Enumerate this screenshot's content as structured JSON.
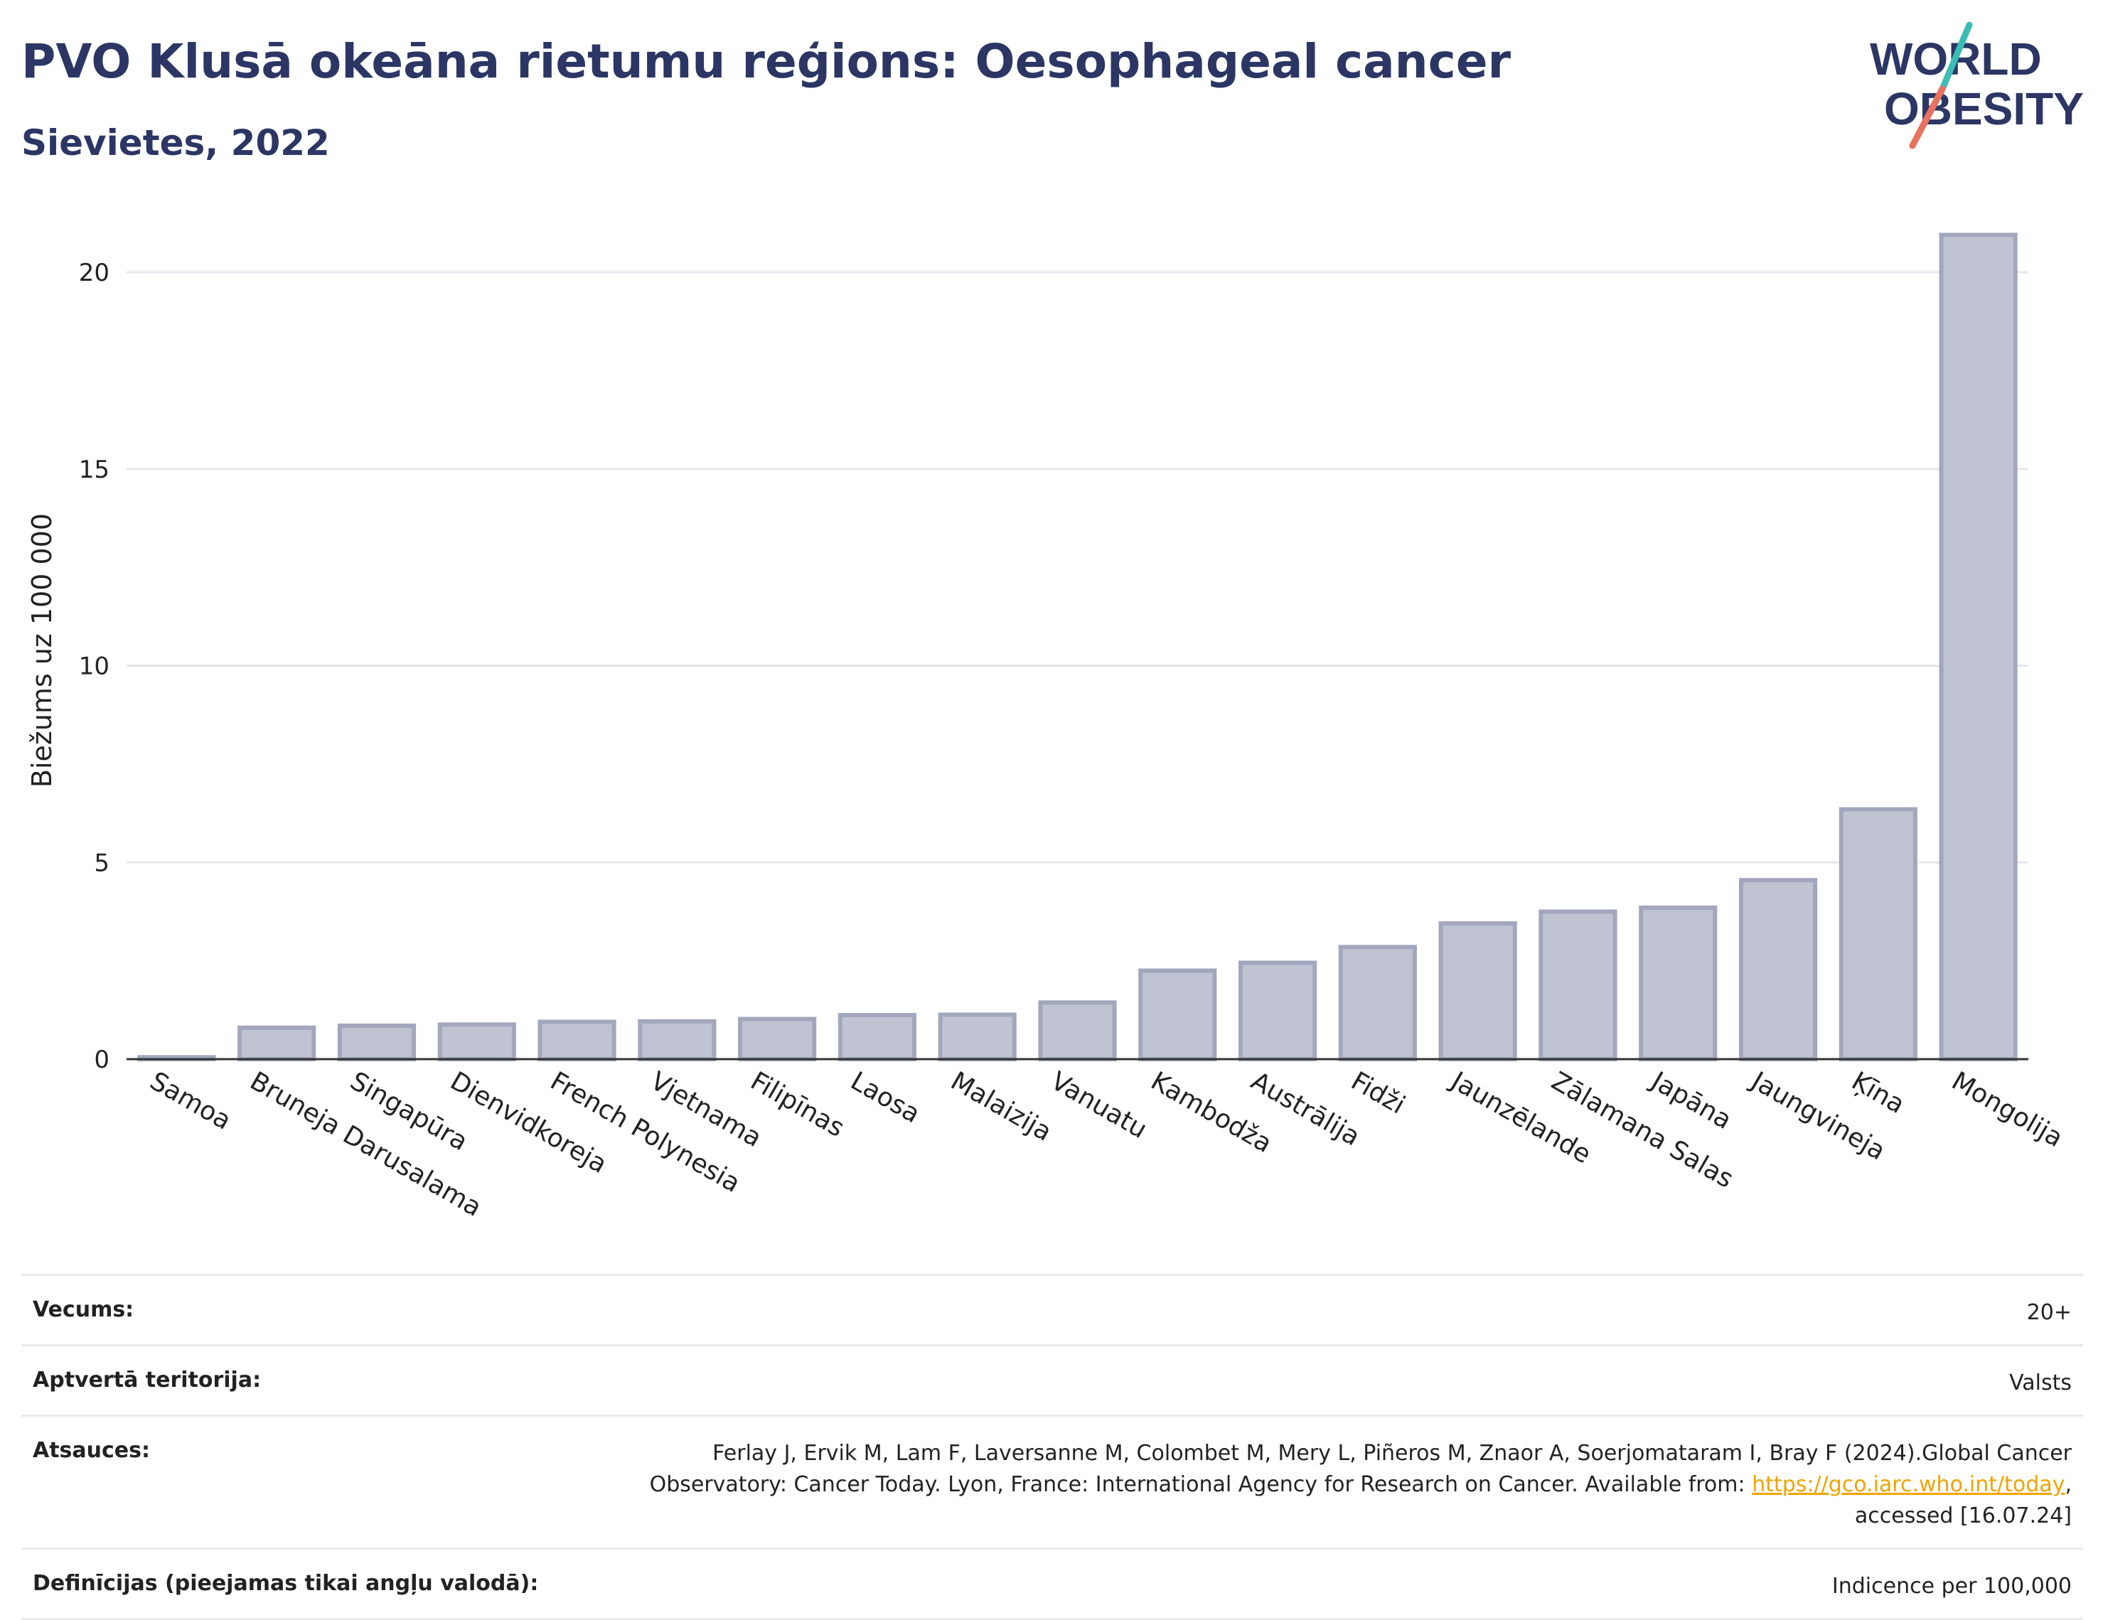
{
  "header": {
    "title": "PVO Klusā okeāna rietumu reģions: Oesophageal cancer",
    "subtitle": "Sievietes, 2022"
  },
  "logo": {
    "line1": "WORLD",
    "line2": "OBESITY"
  },
  "chart_data": {
    "type": "bar",
    "ylabel": "Biežums uz 100 000",
    "xlabel": "",
    "ylim": [
      0,
      21.5
    ],
    "yticks": [
      0,
      5,
      10,
      15,
      20
    ],
    "grid": true,
    "categories": [
      "Samoa",
      "Bruneja Darusalama",
      "Singapūra",
      "Dienvidkoreja",
      "French Polynesia",
      "Vjetnama",
      "Filipīnas",
      "Laosa",
      "Malaizija",
      "Vanuatu",
      "Kambodža",
      "Austrālija",
      "Fidži",
      "Jaunzēlande",
      "Zālamana Salas",
      "Japāna",
      "Jaungvineja",
      "Ķīna",
      "Mongolija"
    ],
    "values": [
      0.05,
      0.8,
      0.85,
      0.88,
      0.95,
      0.96,
      1.02,
      1.12,
      1.13,
      1.44,
      2.25,
      2.45,
      2.85,
      3.45,
      3.75,
      3.85,
      4.55,
      6.35,
      20.95
    ],
    "bar_color": "#c0c3d2",
    "bar_edge_color": "#a3a7bd"
  },
  "info": {
    "rows": [
      {
        "label": "Vecums:",
        "value_lines": [
          "20+"
        ]
      },
      {
        "label": "Aptvertā teritorija:",
        "value_lines": [
          "Valsts"
        ]
      },
      {
        "label": "Atsauces:",
        "value_lines": [
          "Ferlay J, Ervik M, Lam F, Laversanne M, Colombet M, Mery L, Piñeros M, Znaor A, Soerjomataram I, Bray F (2024).Global Cancer",
          "Observatory: Cancer Today. Lyon, France: International Agency for Research on Cancer. Available from: ",
          "accessed [16.07.24]"
        ],
        "link": "https://gco.iarc.who.int/today",
        "link_suffix": ","
      },
      {
        "label": "Definīcijas (pieejamas tikai angļu valodā):",
        "value_lines": [
          "Indicence per 100,000"
        ]
      }
    ]
  }
}
